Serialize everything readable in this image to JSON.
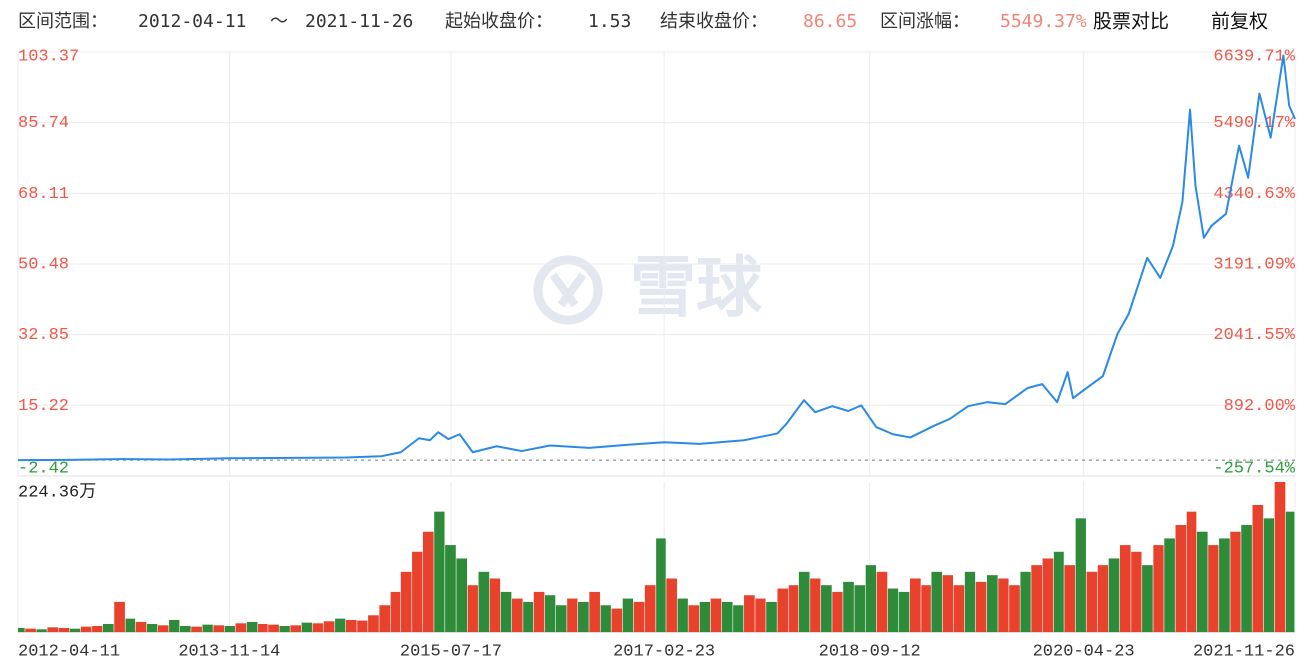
{
  "header": {
    "range_label": "区间范围：",
    "range_start": "2012-04-11",
    "range_sep": "～",
    "range_end": "2021-11-26",
    "start_close_label": "起始收盘价：",
    "start_close": "1.53",
    "end_close_label": "结束收盘价：",
    "end_close": "86.65",
    "change_label": "区间涨幅：",
    "change": "5549.37%",
    "compare": "股票对比",
    "adjust": "前复权"
  },
  "watermark": "雪球",
  "chart_data": [
    {
      "type": "line",
      "x": [
        "2012-04-11",
        "2012-09-01",
        "2013-01-15",
        "2013-06-01",
        "2013-11-14",
        "2014-05-01",
        "2014-10-01",
        "2015-01-05",
        "2015-03-01",
        "2015-04-20",
        "2015-05-20",
        "2015-06-12",
        "2015-07-10",
        "2015-08-10",
        "2015-09-15",
        "2015-11-20",
        "2016-01-28",
        "2016-04-15",
        "2016-08-01",
        "2016-11-20",
        "2017-02-23",
        "2017-06-01",
        "2017-10-01",
        "2018-01-01",
        "2018-01-25",
        "2018-03-15",
        "2018-04-15",
        "2018-06-01",
        "2018-07-15",
        "2018-08-20",
        "2018-09-30",
        "2018-11-15",
        "2019-01-02",
        "2019-03-10",
        "2019-04-20",
        "2019-06-10",
        "2019-08-01",
        "2019-09-20",
        "2019-11-20",
        "2019-12-31",
        "2020-02-10",
        "2020-03-10",
        "2020-03-25",
        "2020-04-23",
        "2020-06-15",
        "2020-07-25",
        "2020-08-25",
        "2020-10-15",
        "2020-11-20",
        "2020-12-25",
        "2021-01-20",
        "2021-02-10",
        "2021-02-25",
        "2021-03-20",
        "2021-04-10",
        "2021-05-20",
        "2021-06-25",
        "2021-07-20",
        "2021-08-20",
        "2021-09-20",
        "2021-10-25",
        "2021-11-10",
        "2021-11-26"
      ],
      "series": [
        {
          "color": "#2b8ae6",
          "values": [
            1.53,
            1.6,
            1.8,
            1.7,
            2.0,
            2.1,
            2.2,
            2.5,
            3.5,
            7.0,
            6.5,
            8.5,
            6.8,
            8.0,
            3.5,
            5.0,
            3.8,
            5.2,
            4.6,
            5.4,
            6.0,
            5.6,
            6.5,
            8.2,
            10.5,
            16.5,
            13.5,
            15.0,
            13.8,
            15.2,
            9.8,
            8.0,
            7.2,
            10.2,
            11.8,
            15.0,
            16.0,
            15.5,
            19.5,
            20.5,
            16.0,
            23.5,
            17.0,
            19.0,
            22.5,
            33.0,
            38.0,
            52.0,
            47.0,
            55.0,
            66.0,
            89.0,
            70.0,
            57.0,
            60.0,
            63.0,
            80.0,
            72.0,
            93.0,
            82.0,
            102.5,
            90.0,
            86.65
          ]
        }
      ],
      "xlim": [
        "2012-04-11",
        "2021-11-26"
      ],
      "xticks": [
        "2012-04-11",
        "2013-11-14",
        "2015-07-17",
        "2017-02-23",
        "2018-09-12",
        "2020-04-23",
        "2021-11-26"
      ],
      "ylim": [
        -2.42,
        103.37
      ],
      "yticks": [
        -2.42,
        15.22,
        32.85,
        50.48,
        68.11,
        85.74,
        103.37
      ],
      "y2lim": [
        -257.54,
        6639.71
      ],
      "y2ticks": [
        {
          "value": -257.54,
          "label": "-257.54%"
        },
        {
          "value": 892,
          "label": "892.00%"
        },
        {
          "value": 2041.55,
          "label": "2041.55%"
        },
        {
          "value": 3191.09,
          "label": "3191.09%"
        },
        {
          "value": 4340.63,
          "label": "4340.63%"
        },
        {
          "value": 5490.17,
          "label": "5490.17%"
        },
        {
          "value": 6639.71,
          "label": "6639.71%"
        }
      ],
      "grid": true,
      "up_color": "#f0584a",
      "down_color": "#2e9b3e"
    },
    {
      "type": "bar",
      "x": [
        "2012-04",
        "2012-05",
        "2012-06",
        "2012-07",
        "2012-08",
        "2012-09",
        "2012-10",
        "2012-11",
        "2012-12",
        "2013-01",
        "2013-02",
        "2013-03",
        "2013-04",
        "2013-05",
        "2013-06",
        "2013-07",
        "2013-08",
        "2013-09",
        "2013-10",
        "2013-11",
        "2013-12",
        "2014-01",
        "2014-02",
        "2014-03",
        "2014-04",
        "2014-05",
        "2014-06",
        "2014-07",
        "2014-08",
        "2014-09",
        "2014-10",
        "2014-11",
        "2014-12",
        "2015-01",
        "2015-02",
        "2015-03",
        "2015-04",
        "2015-05",
        "2015-06",
        "2015-07",
        "2015-08",
        "2015-09",
        "2015-10",
        "2015-11",
        "2015-12",
        "2016-01",
        "2016-02",
        "2016-03",
        "2016-04",
        "2016-05",
        "2016-06",
        "2016-07",
        "2016-08",
        "2016-09",
        "2016-10",
        "2016-11",
        "2016-12",
        "2017-01",
        "2017-02",
        "2017-03",
        "2017-04",
        "2017-05",
        "2017-06",
        "2017-07",
        "2017-08",
        "2017-09",
        "2017-10",
        "2017-11",
        "2017-12",
        "2018-01",
        "2018-02",
        "2018-03",
        "2018-04",
        "2018-05",
        "2018-06",
        "2018-07",
        "2018-08",
        "2018-09",
        "2018-10",
        "2018-11",
        "2018-12",
        "2019-01",
        "2019-02",
        "2019-03",
        "2019-04",
        "2019-05",
        "2019-06",
        "2019-07",
        "2019-08",
        "2019-09",
        "2019-10",
        "2019-11",
        "2019-12",
        "2020-01",
        "2020-02",
        "2020-03",
        "2020-04",
        "2020-05",
        "2020-06",
        "2020-07",
        "2020-08",
        "2020-09",
        "2020-10",
        "2020-11",
        "2020-12",
        "2021-01",
        "2021-02",
        "2021-03",
        "2021-04",
        "2021-05",
        "2021-06",
        "2021-07",
        "2021-08",
        "2021-09",
        "2021-10",
        "2021-11"
      ],
      "values": [
        60000,
        50000,
        40000,
        70000,
        60000,
        50000,
        80000,
        90000,
        120000,
        450000,
        200000,
        150000,
        120000,
        100000,
        180000,
        90000,
        80000,
        110000,
        100000,
        90000,
        130000,
        150000,
        120000,
        110000,
        90000,
        100000,
        140000,
        130000,
        160000,
        200000,
        180000,
        170000,
        250000,
        400000,
        600000,
        900000,
        1200000,
        1500000,
        1800000,
        1300000,
        1100000,
        700000,
        900000,
        800000,
        600000,
        500000,
        450000,
        600000,
        550000,
        400000,
        500000,
        450000,
        600000,
        400000,
        350000,
        500000,
        450000,
        700000,
        1400000,
        800000,
        500000,
        400000,
        450000,
        500000,
        450000,
        400000,
        550000,
        500000,
        450000,
        650000,
        700000,
        900000,
        800000,
        700000,
        600000,
        750000,
        700000,
        1000000,
        900000,
        650000,
        600000,
        800000,
        700000,
        900000,
        850000,
        700000,
        900000,
        750000,
        850000,
        800000,
        700000,
        900000,
        1000000,
        1100000,
        1200000,
        1000000,
        1700000,
        900000,
        1000000,
        1100000,
        1300000,
        1200000,
        1000000,
        1300000,
        1400000,
        1600000,
        1800000,
        1500000,
        1300000,
        1400000,
        1500000,
        1600000,
        1900000,
        1700000,
        2243600,
        1800000
      ],
      "colors": [
        "#2e8b3a",
        "#e8412c",
        "#2e8b3a",
        "#e8412c",
        "#e8412c",
        "#2e8b3a",
        "#e8412c",
        "#e8412c",
        "#2e8b3a",
        "#e8412c",
        "#2e8b3a",
        "#e8412c",
        "#2e8b3a",
        "#e8412c",
        "#2e8b3a",
        "#2e8b3a",
        "#e8412c",
        "#2e8b3a",
        "#e8412c",
        "#2e8b3a",
        "#e8412c",
        "#2e8b3a",
        "#e8412c",
        "#e8412c",
        "#2e8b3a",
        "#e8412c",
        "#2e8b3a",
        "#e8412c",
        "#e8412c",
        "#2e8b3a",
        "#e8412c",
        "#e8412c",
        "#e8412c",
        "#e8412c",
        "#e8412c",
        "#e8412c",
        "#e8412c",
        "#e8412c",
        "#2e8b3a",
        "#2e8b3a",
        "#2e8b3a",
        "#e8412c",
        "#2e8b3a",
        "#e8412c",
        "#2e8b3a",
        "#e8412c",
        "#2e8b3a",
        "#e8412c",
        "#2e8b3a",
        "#2e8b3a",
        "#e8412c",
        "#2e8b3a",
        "#e8412c",
        "#2e8b3a",
        "#e8412c",
        "#2e8b3a",
        "#e8412c",
        "#e8412c",
        "#2e8b3a",
        "#e8412c",
        "#2e8b3a",
        "#e8412c",
        "#2e8b3a",
        "#e8412c",
        "#2e8b3a",
        "#2e8b3a",
        "#e8412c",
        "#e8412c",
        "#2e8b3a",
        "#e8412c",
        "#e8412c",
        "#2e8b3a",
        "#e8412c",
        "#2e8b3a",
        "#e8412c",
        "#2e8b3a",
        "#2e8b3a",
        "#2e8b3a",
        "#e8412c",
        "#2e8b3a",
        "#2e8b3a",
        "#e8412c",
        "#e8412c",
        "#2e8b3a",
        "#e8412c",
        "#e8412c",
        "#2e8b3a",
        "#e8412c",
        "#2e8b3a",
        "#e8412c",
        "#e8412c",
        "#2e8b3a",
        "#e8412c",
        "#e8412c",
        "#2e8b3a",
        "#e8412c",
        "#2e8b3a",
        "#e8412c",
        "#e8412c",
        "#2e8b3a",
        "#e8412c",
        "#e8412c",
        "#2e8b3a",
        "#e8412c",
        "#2e8b3a",
        "#e8412c",
        "#e8412c",
        "#2e8b3a",
        "#e8412c",
        "#2e8b3a",
        "#e8412c",
        "#2e8b3a",
        "#e8412c",
        "#2e8b3a",
        "#e8412c",
        "#2e8b3a"
      ],
      "xlim": [
        "2012-04-11",
        "2021-11-26"
      ],
      "ylim": [
        0,
        2243600
      ],
      "yticks": [
        {
          "value": 2243600,
          "label": "224.36万"
        }
      ]
    }
  ]
}
